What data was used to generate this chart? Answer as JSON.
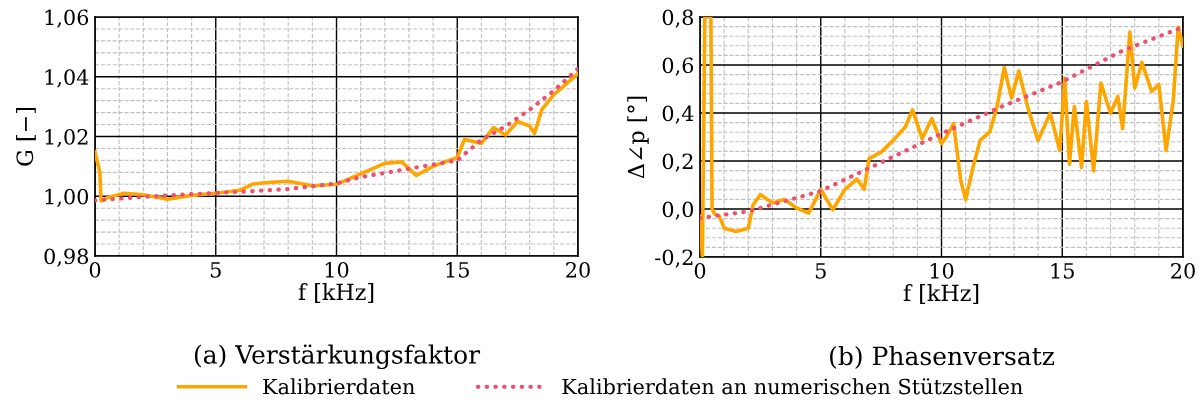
{
  "chart_data": [
    {
      "type": "line",
      "title": "(a) Verstärkungsfaktor",
      "xlabel": "f [kHz]",
      "ylabel": "G [−]",
      "xlim": [
        0,
        20
      ],
      "ylim": [
        0.98,
        1.06
      ],
      "xticks": [
        0,
        {
          "value": 1,
          "label": null
        },
        {
          "value": 2,
          "label": null
        },
        {
          "value": 3,
          "label": null
        },
        {
          "value": 4,
          "label": null
        },
        5,
        {
          "value": 6,
          "label": null
        },
        {
          "value": 7,
          "label": null
        },
        {
          "value": 8,
          "label": null
        },
        {
          "value": 9,
          "label": null
        },
        10,
        {
          "value": 11,
          "label": null
        },
        {
          "value": 12,
          "label": null
        },
        {
          "value": 13,
          "label": null
        },
        {
          "value": 14,
          "label": null
        },
        15,
        {
          "value": 16,
          "label": null
        },
        {
          "value": 17,
          "label": null
        },
        {
          "value": 18,
          "label": null
        },
        {
          "value": 19,
          "label": null
        },
        20
      ],
      "yticks": [
        {
          "value": 0.98,
          "label": "0,98"
        },
        {
          "value": 0.984,
          "label": null
        },
        {
          "value": 0.988,
          "label": null
        },
        {
          "value": 0.992,
          "label": null
        },
        {
          "value": 0.996,
          "label": null
        },
        {
          "value": 1.0,
          "label": "1,00"
        },
        {
          "value": 1.004,
          "label": null
        },
        {
          "value": 1.008,
          "label": null
        },
        {
          "value": 1.012,
          "label": null
        },
        {
          "value": 1.016,
          "label": null
        },
        {
          "value": 1.02,
          "label": "1,02"
        },
        {
          "value": 1.024,
          "label": null
        },
        {
          "value": 1.028,
          "label": null
        },
        {
          "value": 1.032,
          "label": null
        },
        {
          "value": 1.036,
          "label": null
        },
        {
          "value": 1.04,
          "label": "1,04"
        },
        {
          "value": 1.044,
          "label": null
        },
        {
          "value": 1.048,
          "label": null
        },
        {
          "value": 1.052,
          "label": null
        },
        {
          "value": 1.056,
          "label": null
        },
        {
          "value": 1.06,
          "label": "1,06"
        }
      ],
      "grid": true,
      "legend": "bottom",
      "series": [
        {
          "name": "Kalibrierdaten",
          "color": "#ffa500",
          "line_style": "solid",
          "x": [
            0,
            0.2,
            0.25,
            0.5,
            1.2,
            2,
            3,
            4,
            5,
            6,
            6.5,
            7,
            8,
            9,
            10,
            11,
            12,
            12.7,
            13.3,
            14,
            14.5,
            15,
            15.3,
            16,
            16.5,
            17,
            17.5,
            18,
            18.2,
            18.5,
            19,
            19.5,
            20
          ],
          "values": [
            1.0149,
            1.008,
            0.9984,
            0.9995,
            1.001,
            1.0005,
            0.999,
            1.0003,
            1.001,
            1.002,
            1.004,
            1.0045,
            1.005,
            1.0035,
            1.004,
            1.0075,
            1.011,
            1.0115,
            1.007,
            1.01,
            1.0115,
            1.013,
            1.019,
            1.0177,
            1.023,
            1.0205,
            1.025,
            1.0235,
            1.021,
            1.029,
            1.034,
            1.0375,
            1.041
          ]
        },
        {
          "name": "Kalibrierdaten an numerischen Stützstellen",
          "color": "#f0506e",
          "line_style": "dotted",
          "x": [
            0,
            2,
            4,
            6,
            8,
            10,
            11,
            12,
            14,
            15,
            16,
            17,
            18,
            19,
            20
          ],
          "values": [
            0.9986,
            0.9998,
            1.0007,
            1.0015,
            1.0024,
            1.0043,
            1.0064,
            1.0078,
            1.0106,
            1.012,
            1.0189,
            1.0234,
            1.029,
            1.0353,
            1.0427
          ]
        }
      ]
    },
    {
      "type": "line",
      "title": "(b) Phasenversatz",
      "xlabel": "f [kHz]",
      "ylabel": "Δ∠p [°]",
      "xlim": [
        0,
        20
      ],
      "ylim": [
        -0.2,
        0.8
      ],
      "xticks": [
        0,
        {
          "value": 1,
          "label": null
        },
        {
          "value": 2,
          "label": null
        },
        {
          "value": 3,
          "label": null
        },
        {
          "value": 4,
          "label": null
        },
        5,
        {
          "value": 6,
          "label": null
        },
        {
          "value": 7,
          "label": null
        },
        {
          "value": 8,
          "label": null
        },
        {
          "value": 9,
          "label": null
        },
        10,
        {
          "value": 11,
          "label": null
        },
        {
          "value": 12,
          "label": null
        },
        {
          "value": 13,
          "label": null
        },
        {
          "value": 14,
          "label": null
        },
        15,
        {
          "value": 16,
          "label": null
        },
        {
          "value": 17,
          "label": null
        },
        {
          "value": 18,
          "label": null
        },
        {
          "value": 19,
          "label": null
        },
        20
      ],
      "yticks": [
        {
          "value": -0.2,
          "label": "-0,2"
        },
        {
          "value": -0.16,
          "label": null
        },
        {
          "value": -0.12,
          "label": null
        },
        {
          "value": -0.08,
          "label": null
        },
        {
          "value": -0.04,
          "label": null
        },
        {
          "value": 0.0,
          "label": "0,0"
        },
        {
          "value": 0.04,
          "label": null
        },
        {
          "value": 0.08,
          "label": null
        },
        {
          "value": 0.12,
          "label": null
        },
        {
          "value": 0.16,
          "label": null
        },
        {
          "value": 0.2,
          "label": "0,2"
        },
        {
          "value": 0.24,
          "label": null
        },
        {
          "value": 0.28,
          "label": null
        },
        {
          "value": 0.32,
          "label": null
        },
        {
          "value": 0.36,
          "label": null
        },
        {
          "value": 0.4,
          "label": "0,4"
        },
        {
          "value": 0.44,
          "label": null
        },
        {
          "value": 0.48,
          "label": null
        },
        {
          "value": 0.52,
          "label": null
        },
        {
          "value": 0.56,
          "label": null
        },
        {
          "value": 0.6,
          "label": "0,6"
        },
        {
          "value": 0.64,
          "label": null
        },
        {
          "value": 0.68,
          "label": null
        },
        {
          "value": 0.72,
          "label": null
        },
        {
          "value": 0.76,
          "label": null
        },
        {
          "value": 0.8,
          "label": "0,8"
        }
      ],
      "grid": true,
      "series": [
        {
          "color": "#ffa500",
          "line_style": "solid",
          "x": [
            0,
            0.1,
            0.2,
            0.3,
            0.45,
            0.5,
            0.6,
            0.8,
            1,
            1.5,
            2,
            2.2,
            2.5,
            3,
            3.5,
            4,
            4.5,
            5,
            5.5,
            6,
            6.5,
            6.8,
            7,
            7.5,
            8,
            8.5,
            8.8,
            9.2,
            9.6,
            10,
            10.2,
            10.5,
            10.8,
            11,
            11.3,
            11.6,
            12,
            12.3,
            12.6,
            12.9,
            13.2,
            13.6,
            14,
            14.5,
            14.9,
            15.1,
            15.3,
            15.5,
            15.8,
            16,
            16.3,
            16.6,
            17,
            17.3,
            17.5,
            17.8,
            18,
            18.3,
            18.7,
            19,
            19.3,
            19.6,
            19.8,
            20
          ],
          "values": [
            -0.03,
            -0.2,
            0.8,
            0.8,
            0.8,
            0.0,
            -0.02,
            -0.03,
            -0.08,
            -0.094,
            -0.08,
            0.018,
            0.06,
            0.025,
            0.04,
            0.004,
            -0.017,
            0.082,
            -0.003,
            0.082,
            0.124,
            0.082,
            0.21,
            0.237,
            0.286,
            0.342,
            0.413,
            0.293,
            0.377,
            0.272,
            0.3,
            0.356,
            0.117,
            0.039,
            0.173,
            0.286,
            0.321,
            0.427,
            0.589,
            0.462,
            0.575,
            0.413,
            0.286,
            0.399,
            0.244,
            0.546,
            0.187,
            0.427,
            0.173,
            0.448,
            0.159,
            0.525,
            0.399,
            0.469,
            0.335,
            0.737,
            0.504,
            0.61,
            0.49,
            0.518,
            0.244,
            0.455,
            0.758,
            0.68
          ]
        },
        {
          "color": "#f0506e",
          "line_style": "dotted",
          "x": [
            0,
            2,
            5,
            7.5,
            10,
            12.5,
            15,
            17.5,
            20
          ],
          "values": [
            -0.038,
            -0.01,
            0.075,
            0.194,
            0.314,
            0.427,
            0.53,
            0.66,
            0.758
          ]
        }
      ]
    }
  ]
}
